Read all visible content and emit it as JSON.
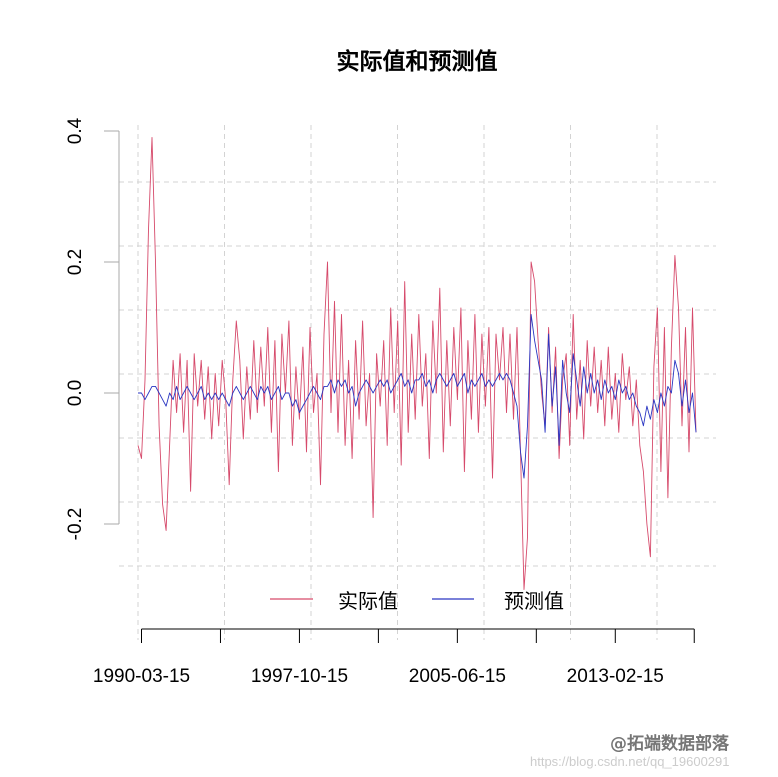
{
  "chart_data": {
    "type": "line",
    "title": "实际值和预测值",
    "xlabel": "",
    "ylabel": "",
    "ylim": [
      -0.3,
      0.4
    ],
    "y_ticks": [
      "-0.2",
      "0.0",
      "0.2",
      "0.4"
    ],
    "y_tick_values": [
      -0.2,
      0.0,
      0.2,
      0.4
    ],
    "x_tick_labels": [
      "1990-03-15",
      "1997-10-15",
      "2005-06-15",
      "2013-02-15"
    ],
    "x_tick_indices": [
      1,
      23.5,
      46,
      68.5,
      91,
      113.5,
      136,
      158.5
    ],
    "x_label_tick_positions": [
      0,
      2,
      4,
      6
    ],
    "grid": true,
    "grid_style": "dashed",
    "legend_position": "bottom",
    "series": [
      {
        "name": "实际值",
        "color": "#d64a6b",
        "values": [
          -0.08,
          -0.1,
          0.02,
          0.25,
          0.39,
          0.2,
          -0.05,
          -0.17,
          -0.21,
          -0.08,
          0.05,
          -0.03,
          0.06,
          -0.06,
          0.05,
          -0.15,
          0.06,
          -0.02,
          0.05,
          -0.04,
          0.04,
          -0.07,
          0.03,
          -0.05,
          0.05,
          -0.01,
          -0.14,
          0.02,
          0.11,
          0.05,
          -0.07,
          0.04,
          -0.04,
          0.08,
          -0.03,
          0.07,
          -0.02,
          0.1,
          -0.06,
          0.08,
          -0.12,
          0.09,
          0.0,
          0.11,
          -0.08,
          0.04,
          -0.04,
          0.07,
          -0.09,
          0.1,
          -0.03,
          0.03,
          -0.14,
          0.09,
          0.2,
          -0.03,
          0.14,
          -0.06,
          0.12,
          -0.08,
          0.05,
          -0.1,
          0.08,
          -0.04,
          0.11,
          -0.05,
          0.03,
          -0.19,
          0.06,
          -0.02,
          0.08,
          -0.08,
          0.13,
          -0.03,
          0.11,
          -0.11,
          0.17,
          -0.06,
          0.09,
          -0.04,
          0.12,
          -0.02,
          0.06,
          -0.1,
          0.11,
          0.0,
          0.16,
          -0.09,
          0.08,
          -0.05,
          0.1,
          -0.01,
          0.13,
          -0.12,
          0.08,
          -0.04,
          0.12,
          -0.06,
          0.09,
          -0.02,
          0.1,
          -0.13,
          0.09,
          0.02,
          0.1,
          -0.03,
          0.09,
          -0.04,
          0.1,
          -0.09,
          -0.3,
          -0.22,
          0.2,
          0.17,
          0.08,
          0.0,
          -0.05,
          0.1,
          -0.03,
          0.07,
          -0.1,
          0.02,
          0.06,
          -0.08,
          0.12,
          -0.04,
          0.05,
          -0.07,
          0.08,
          -0.02,
          0.07,
          -0.03,
          0.05,
          -0.05,
          0.07,
          -0.04,
          0.03,
          -0.06,
          0.06,
          -0.01,
          0.04,
          -0.05,
          0.02,
          -0.08,
          -0.12,
          -0.2,
          -0.25,
          0.04,
          0.13,
          -0.12,
          0.1,
          -0.16,
          0.07,
          0.21,
          0.13,
          -0.05,
          0.1,
          -0.09,
          0.13,
          -0.06
        ]
      },
      {
        "name": "预测值",
        "color": "#2a36c2",
        "values": [
          0,
          0,
          -0.01,
          0.0,
          0.01,
          0.01,
          0,
          -0.01,
          -0.02,
          0,
          -0.01,
          0.01,
          -0.01,
          0.0,
          0.01,
          0.0,
          -0.01,
          0.0,
          0.01,
          -0.01,
          0,
          -0.01,
          0,
          -0.01,
          0.0,
          -0.01,
          -0.02,
          0.0,
          0.01,
          0.0,
          -0.01,
          0.0,
          0.01,
          0.0,
          -0.01,
          0.01,
          0.0,
          0.01,
          -0.01,
          0.0,
          0.01,
          -0.01,
          0.0,
          0.0,
          -0.02,
          -0.01,
          -0.03,
          -0.02,
          -0.01,
          0.0,
          0.01,
          0.0,
          -0.01,
          0.01,
          0.01,
          0.02,
          0.0,
          0.02,
          0.01,
          0.02,
          0.0,
          0.01,
          -0.02,
          0.0,
          0.01,
          0.02,
          0.01,
          0.0,
          0.01,
          0.02,
          0.01,
          0.02,
          0.0,
          0.01,
          0.02,
          0.03,
          0.01,
          0.02,
          0.0,
          0.02,
          0.02,
          0.03,
          0.01,
          0.02,
          0.0,
          0.02,
          0.03,
          0.02,
          0.01,
          0.02,
          0.03,
          0.01,
          0.02,
          0.03,
          0.0,
          0.02,
          0.01,
          0.02,
          0.03,
          0.01,
          0.02,
          0.01,
          0.02,
          0.03,
          0.02,
          0.03,
          0.02,
          0.0,
          -0.02,
          -0.09,
          -0.13,
          -0.05,
          0.12,
          0.08,
          0.05,
          0.02,
          -0.06,
          0.09,
          -0.02,
          0.04,
          -0.08,
          0.05,
          0.0,
          -0.03,
          0.06,
          0.02,
          -0.02,
          0.04,
          0.0,
          0.03,
          0.0,
          0.02,
          -0.01,
          0.02,
          0.0,
          0.01,
          -0.01,
          0.02,
          0.0,
          0.01,
          -0.01,
          0.0,
          -0.02,
          -0.03,
          -0.05,
          -0.02,
          -0.04,
          -0.01,
          -0.03,
          0.0,
          -0.02,
          0.01,
          0.0,
          0.05,
          0.03,
          -0.02,
          0.02,
          -0.03,
          0.0,
          -0.06
        ]
      }
    ]
  },
  "watermark": {
    "brand": "@拓端数据部落",
    "url": "https://blog.csdn.net/qq_19600291"
  }
}
